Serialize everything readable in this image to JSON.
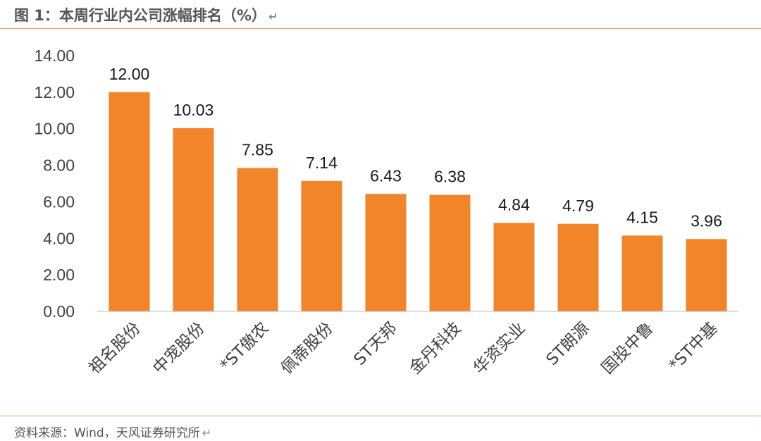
{
  "header": {
    "title": "图 1：本周行业内公司涨幅排名（%）",
    "return_mark": "↵"
  },
  "footer": {
    "source": "资料来源：Wind，天风证券研究所",
    "return_mark": "↵"
  },
  "colors": {
    "bar": "#f28429",
    "rule": "#e8a66d",
    "axis": "#bfbfbf",
    "text": "#404040"
  },
  "chart_data": {
    "type": "bar",
    "categories": [
      "祖名股份",
      "中宠股份",
      "*ST傲农",
      "佩蒂股份",
      "ST天邦",
      "金丹科技",
      "华资实业",
      "ST朗源",
      "国投中鲁",
      "*ST中基"
    ],
    "values": [
      12.0,
      10.03,
      7.85,
      7.14,
      6.43,
      6.38,
      4.84,
      4.79,
      4.15,
      3.96
    ],
    "data_labels": [
      "12.00",
      "10.03",
      "7.85",
      "7.14",
      "6.43",
      "6.38",
      "4.84",
      "4.79",
      "4.15",
      "3.96"
    ],
    "yticks": [
      "0.00",
      "2.00",
      "4.00",
      "6.00",
      "8.00",
      "10.00",
      "12.00",
      "14.00"
    ],
    "ylim": [
      0,
      14
    ],
    "grid": false,
    "legend": "none"
  }
}
